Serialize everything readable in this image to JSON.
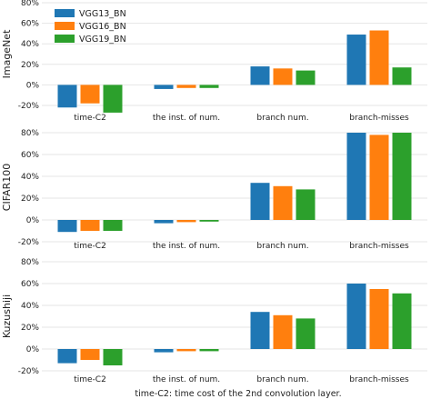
{
  "colors": {
    "VGG13_BN": "#1f77b4",
    "VGG16_BN": "#ff7f0e",
    "VGG19_BN": "#2ca02c"
  },
  "caption": "time-C2: time cost of the 2nd convolution layer.",
  "chart_data": [
    {
      "type": "bar",
      "ylabel": "ImageNet",
      "ylim": [
        -20,
        80
      ],
      "yticks": [
        "-20%",
        "0%",
        "20%",
        "40%",
        "60%",
        "80%"
      ],
      "ytick_values": [
        -20,
        0,
        20,
        40,
        60,
        80
      ],
      "categories": [
        "time-C2",
        "the inst. of num.",
        "branch num.",
        "branch-misses"
      ],
      "legend": "top-left",
      "grid": true,
      "series": [
        {
          "name": "VGG13_BN",
          "values": [
            -22,
            -4,
            18,
            49
          ]
        },
        {
          "name": "VGG16_BN",
          "values": [
            -18,
            -3,
            16,
            53
          ]
        },
        {
          "name": "VGG19_BN",
          "values": [
            -27,
            -3,
            14,
            17
          ]
        }
      ]
    },
    {
      "type": "bar",
      "ylabel": "CIFAR100",
      "ylim": [
        -20,
        80
      ],
      "yticks": [
        "-20%",
        "0%",
        "20%",
        "40%",
        "60%",
        "80%"
      ],
      "ytick_values": [
        -20,
        0,
        20,
        40,
        60,
        80
      ],
      "categories": [
        "time-C2",
        "the inst. of num.",
        "branch num.",
        "branch-misses"
      ],
      "grid": true,
      "series": [
        {
          "name": "VGG13_BN",
          "values": [
            -11,
            -3,
            34,
            80
          ]
        },
        {
          "name": "VGG16_BN",
          "values": [
            -10,
            -2,
            31,
            78
          ]
        },
        {
          "name": "VGG19_BN",
          "values": [
            -10,
            -1.5,
            28,
            80
          ]
        }
      ]
    },
    {
      "type": "bar",
      "ylabel": "Kuzushiji",
      "ylim": [
        -20,
        80
      ],
      "yticks": [
        "-20%",
        "0%",
        "20%",
        "40%",
        "60%",
        "80%"
      ],
      "ytick_values": [
        -20,
        0,
        20,
        40,
        60,
        80
      ],
      "categories": [
        "time-C2",
        "the inst. of num.",
        "branch num.",
        "branch-misses"
      ],
      "grid": true,
      "series": [
        {
          "name": "VGG13_BN",
          "values": [
            -13,
            -3,
            34,
            60
          ]
        },
        {
          "name": "VGG16_BN",
          "values": [
            -10,
            -2,
            31,
            55
          ]
        },
        {
          "name": "VGG19_BN",
          "values": [
            -15,
            -2,
            28,
            51
          ]
        }
      ]
    }
  ]
}
